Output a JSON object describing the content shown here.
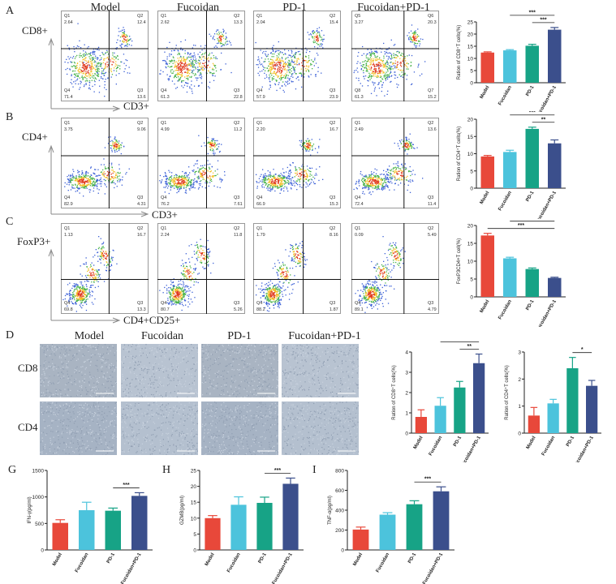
{
  "panel_letters": {
    "A": "A",
    "B": "B",
    "C": "C",
    "D": "D",
    "G": "G",
    "H": "H",
    "I": "I"
  },
  "flow": {
    "groups": [
      "Model",
      "Fucoidan",
      "PD-1",
      "Fucoidan+PD-1"
    ],
    "rows": [
      {
        "key": "A",
        "ylab": "CD8+",
        "xlab": "CD3+",
        "plots": [
          {
            "q": [
              "Q1",
              "Q2",
              "Q4",
              "Q3"
            ],
            "v": [
              "2.64",
              "12.4",
              "71.4",
              "13.6"
            ]
          },
          {
            "q": [
              "Q1",
              "Q2",
              "Q4",
              "Q3"
            ],
            "v": [
              "2.62",
              "13.3",
              "61.3",
              "22.8"
            ]
          },
          {
            "q": [
              "Q1",
              "Q2",
              "Q4",
              "Q3"
            ],
            "v": [
              "2.04",
              "15.4",
              "57.9",
              "23.9"
            ]
          },
          {
            "q": [
              "Q5",
              "Q6",
              "Q8",
              "Q7"
            ],
            "v": [
              "3.27",
              "20.3",
              "61.3",
              "15.2"
            ]
          }
        ]
      },
      {
        "key": "B",
        "ylab": "CD4+",
        "xlab": "CD3+",
        "plots": [
          {
            "q": [
              "Q1",
              "Q2",
              "Q4",
              "Q3"
            ],
            "v": [
              "3.75",
              "9.06",
              "82.9",
              "4.31"
            ]
          },
          {
            "q": [
              "Q1",
              "Q2",
              "Q4",
              "Q3"
            ],
            "v": [
              "4.99",
              "11.2",
              "76.2",
              "7.61"
            ]
          },
          {
            "q": [
              "Q1",
              "Q2",
              "Q4",
              "Q3"
            ],
            "v": [
              "2.20",
              "16.7",
              "66.9",
              "15.3"
            ]
          },
          {
            "q": [
              "Q1",
              "Q2",
              "Q4",
              "Q3"
            ],
            "v": [
              "2.49",
              "13.6",
              "72.4",
              "11.4"
            ]
          }
        ]
      },
      {
        "key": "C",
        "ylab": "FoxP3+",
        "xlab": "CD4+CD25+",
        "plots": [
          {
            "q": [
              "Q1",
              "Q2",
              "Q4",
              "Q3"
            ],
            "v": [
              "1.13",
              "16.7",
              "69.8",
              "13.3"
            ]
          },
          {
            "q": [
              "Q1",
              "Q2",
              "Q4",
              "Q3"
            ],
            "v": [
              "2.24",
              "11.8",
              "80.7",
              "5.26"
            ]
          },
          {
            "q": [
              "Q1",
              "Q2",
              "Q4",
              "Q3"
            ],
            "v": [
              "1.79",
              "8.16",
              "88.2",
              "1.87"
            ]
          },
          {
            "q": [
              "Q1",
              "Q2",
              "Q4",
              "Q3"
            ],
            "v": [
              "0.09",
              "5.49",
              "89.1",
              "4.79"
            ]
          }
        ]
      }
    ]
  },
  "ihc": {
    "groups": [
      "Model",
      "Fucoidan",
      "PD-1",
      "Fucoidan+PD-1"
    ],
    "rows": [
      "CD8",
      "CD4"
    ]
  },
  "colors": {
    "model": "#e8483a",
    "fucoidan": "#4cc3dc",
    "pd1": "#17a386",
    "combo": "#3b4f8c",
    "ihc_bg": "#aeb9c8"
  },
  "chart_data": [
    {
      "id": "A",
      "type": "bar",
      "categories": [
        "Model",
        "Fucoidan",
        "PD-1",
        "Fucoidan+PD-1"
      ],
      "values": [
        12.4,
        13.3,
        15.2,
        21.8
      ],
      "err": [
        0.3,
        0.3,
        0.6,
        0.9
      ],
      "ylabel": "Ration of CD8⁺T cells(%)",
      "ylim": [
        0,
        25
      ],
      "ticks": [
        0,
        5,
        10,
        15,
        20,
        25
      ],
      "sig": [
        {
          "from": 2,
          "to": 3,
          "label": "***"
        },
        {
          "from": 1,
          "to": 3,
          "label": "***"
        }
      ]
    },
    {
      "id": "B",
      "type": "bar",
      "categories": [
        "Model",
        "Fucoidan",
        "PD-1",
        "Fucoidan+PD-1"
      ],
      "values": [
        9.2,
        10.5,
        17.2,
        13.0
      ],
      "err": [
        0.3,
        0.5,
        0.5,
        1.0
      ],
      "ylabel": "Ration of CD4⁺T cells(%)",
      "ylim": [
        0,
        20
      ],
      "ticks": [
        0,
        5,
        10,
        15,
        20
      ],
      "sig": [
        {
          "from": 2,
          "to": 3,
          "label": "**"
        },
        {
          "from": 1,
          "to": 3,
          "label": "***"
        }
      ]
    },
    {
      "id": "C",
      "type": "bar",
      "categories": [
        "Model",
        "Fucoidan",
        "PD-1",
        "Fucoidan+PD-1"
      ],
      "values": [
        17.2,
        10.8,
        7.8,
        5.3
      ],
      "err": [
        0.6,
        0.3,
        0.3,
        0.2
      ],
      "ylabel": "FoxP3CD4+T cell(%)",
      "ylim": [
        0,
        20
      ],
      "ticks": [
        0,
        5,
        10,
        15,
        20
      ],
      "sig": [
        {
          "from": 0,
          "to": 3,
          "label": "***"
        },
        {
          "from": 1,
          "to": 3,
          "label": "***"
        },
        {
          "from": 2,
          "to": 3,
          "label": "**"
        }
      ]
    },
    {
      "id": "D1",
      "type": "bar",
      "categories": [
        "Model",
        "Fucoidan",
        "PD-1",
        "Fucoidan+PD-1"
      ],
      "values": [
        0.8,
        1.35,
        2.25,
        3.45
      ],
      "err": [
        0.35,
        0.4,
        0.3,
        0.45
      ],
      "ylabel": "Ration of CD8⁺T cells(%)",
      "ylim": [
        0,
        4
      ],
      "ticks": [
        0,
        1,
        2,
        3,
        4
      ],
      "sig": [
        {
          "from": 2,
          "to": 3,
          "label": "**"
        },
        {
          "from": 1,
          "to": 3,
          "label": "***"
        }
      ]
    },
    {
      "id": "D2",
      "type": "bar",
      "categories": [
        "Model",
        "Fucoidan",
        "PD-1",
        "Fucoidan+PD-1"
      ],
      "values": [
        0.65,
        1.1,
        2.4,
        1.75
      ],
      "err": [
        0.3,
        0.15,
        0.4,
        0.2
      ],
      "ylabel": "Ration of CD4⁺T cells(%)",
      "ylim": [
        0,
        3
      ],
      "ticks": [
        0,
        1,
        2,
        3
      ],
      "sig": [
        {
          "from": 2,
          "to": 3,
          "label": "*"
        }
      ]
    },
    {
      "id": "G",
      "type": "bar",
      "categories": [
        "Model",
        "Fucoidan",
        "PD-1",
        "Fucoidan+PD-1"
      ],
      "values": [
        510,
        750,
        740,
        1020
      ],
      "err": [
        60,
        150,
        50,
        60
      ],
      "ylabel": "IFN-γ(pg/ml)",
      "ylim": [
        0,
        1500
      ],
      "ticks": [
        0,
        500,
        1000,
        1500
      ],
      "sig": [
        {
          "from": 2,
          "to": 3,
          "label": "***"
        }
      ]
    },
    {
      "id": "H",
      "type": "bar",
      "categories": [
        "Model",
        "Fucoidan",
        "PD-1",
        "Fucoidan+PD-1"
      ],
      "values": [
        10.0,
        14.2,
        14.8,
        20.8
      ],
      "err": [
        0.8,
        2.5,
        1.8,
        1.8
      ],
      "ylabel": "GZMB(pg/ml)",
      "ylim": [
        0,
        25
      ],
      "ticks": [
        0,
        5,
        10,
        15,
        20,
        25
      ],
      "sig": [
        {
          "from": 2,
          "to": 3,
          "label": "***"
        }
      ]
    },
    {
      "id": "I",
      "type": "bar",
      "categories": [
        "Model",
        "Fucoidan",
        "PD-1",
        "Fucoidan+PD-1"
      ],
      "values": [
        205,
        355,
        460,
        590
      ],
      "err": [
        25,
        20,
        35,
        45
      ],
      "ylabel": "TNF-α(pg/ml)",
      "ylim": [
        0,
        800
      ],
      "ticks": [
        0,
        200,
        400,
        600,
        800
      ],
      "sig": [
        {
          "from": 2,
          "to": 3,
          "label": "***"
        }
      ]
    }
  ]
}
